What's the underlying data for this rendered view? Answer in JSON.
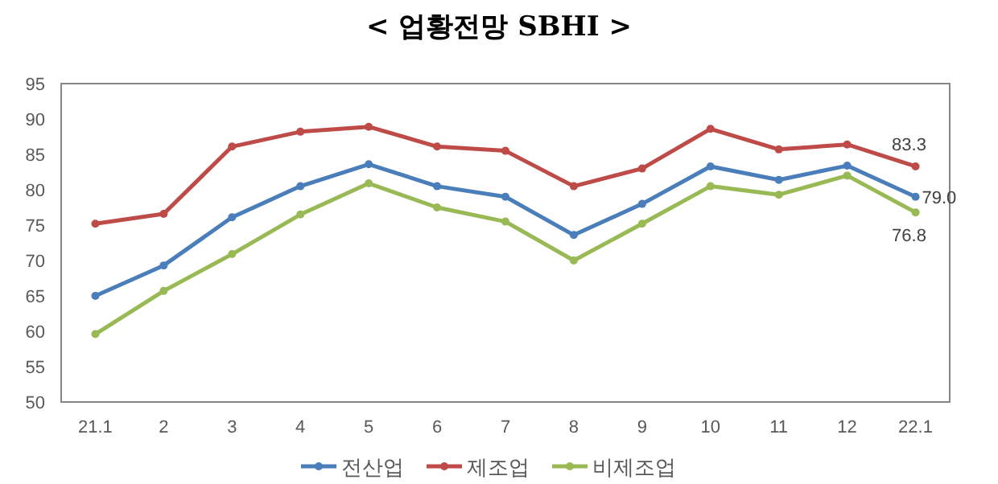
{
  "chart_data": {
    "type": "line",
    "title": "< 업황전망 SBHI >",
    "categories": [
      "21.1",
      "2",
      "3",
      "4",
      "5",
      "6",
      "7",
      "8",
      "9",
      "10",
      "11",
      "12",
      "22.1"
    ],
    "series": [
      {
        "name": "전산업",
        "color": "#4a7ebb",
        "values": [
          65.0,
          69.3,
          76.1,
          80.5,
          83.6,
          80.5,
          79.0,
          73.6,
          78.0,
          83.3,
          81.4,
          83.4,
          79.0
        ],
        "value_labels": [
          null,
          null,
          null,
          null,
          null,
          null,
          null,
          null,
          null,
          null,
          null,
          null,
          "79.0"
        ]
      },
      {
        "name": "제조업",
        "color": "#be4b48",
        "values": [
          75.2,
          76.6,
          86.1,
          88.2,
          88.9,
          86.1,
          85.5,
          80.5,
          83.0,
          88.6,
          85.7,
          86.4,
          83.3
        ],
        "value_labels": [
          null,
          null,
          null,
          null,
          null,
          null,
          null,
          null,
          null,
          null,
          null,
          null,
          "83.3"
        ]
      },
      {
        "name": "비제조업",
        "color": "#98b954",
        "values": [
          59.6,
          65.7,
          70.9,
          76.5,
          80.9,
          77.5,
          75.5,
          70.0,
          75.2,
          80.5,
          79.3,
          82.0,
          76.8
        ],
        "value_labels": [
          null,
          null,
          null,
          null,
          null,
          null,
          null,
          null,
          null,
          null,
          null,
          null,
          "76.8"
        ]
      }
    ],
    "ylim": [
      50,
      95
    ],
    "yticks": [
      50,
      55,
      60,
      65,
      70,
      75,
      80,
      85,
      90,
      95
    ],
    "grid": false,
    "legend": "bottom",
    "marker": "circle",
    "line_style": "solid"
  }
}
